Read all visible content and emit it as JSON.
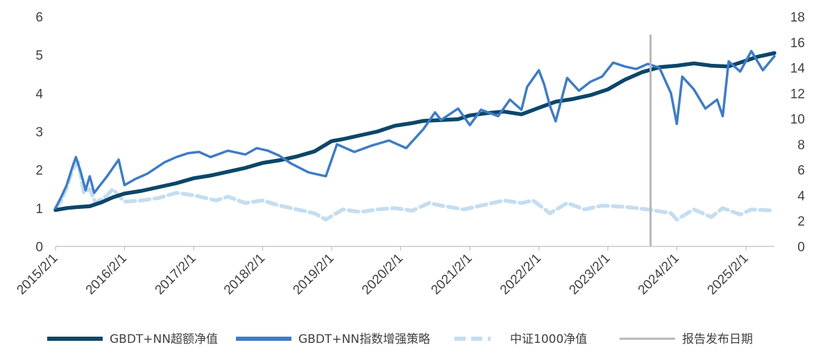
{
  "chart_data": {
    "type": "line",
    "x_ticks": [
      "2015/2/1",
      "2016/2/1",
      "2017/2/1",
      "2018/2/1",
      "2019/2/1",
      "2020/2/1",
      "2021/2/1",
      "2022/2/1",
      "2023/2/1",
      "2024/2/1",
      "2025/2/1"
    ],
    "x_range": [
      "2015/2/1",
      "2025/7/1"
    ],
    "y_left": {
      "ticks": [
        "0",
        "1",
        "2",
        "3",
        "4",
        "5",
        "6"
      ],
      "range": [
        0,
        6
      ]
    },
    "y_right": {
      "ticks": [
        "0",
        "2",
        "4",
        "6",
        "8",
        "10",
        "12",
        "14",
        "16",
        "18"
      ],
      "range": [
        0,
        18
      ]
    },
    "grid": false,
    "legend_position": "bottom",
    "series": [
      {
        "name": "GBDT+NN超额净值",
        "axis": "left",
        "color": "#0b4669",
        "style": "solid-thick",
        "points": [
          [
            "2015/2/1",
            0.95
          ],
          [
            "2015/4/1",
            1.0
          ],
          [
            "2015/6/1",
            1.03
          ],
          [
            "2015/8/1",
            1.05
          ],
          [
            "2015/10/1",
            1.15
          ],
          [
            "2015/12/1",
            1.28
          ],
          [
            "2016/2/1",
            1.38
          ],
          [
            "2016/5/1",
            1.45
          ],
          [
            "2016/8/1",
            1.55
          ],
          [
            "2016/11/1",
            1.65
          ],
          [
            "2017/2/1",
            1.78
          ],
          [
            "2017/5/1",
            1.85
          ],
          [
            "2017/8/1",
            1.95
          ],
          [
            "2017/11/1",
            2.05
          ],
          [
            "2018/2/1",
            2.18
          ],
          [
            "2018/5/1",
            2.25
          ],
          [
            "2018/8/1",
            2.35
          ],
          [
            "2018/11/1",
            2.48
          ],
          [
            "2019/2/1",
            2.75
          ],
          [
            "2019/4/1",
            2.8
          ],
          [
            "2019/7/1",
            2.9
          ],
          [
            "2019/10/1",
            3.0
          ],
          [
            "2020/1/1",
            3.15
          ],
          [
            "2020/4/1",
            3.22
          ],
          [
            "2020/6/1",
            3.28
          ],
          [
            "2020/9/1",
            3.3
          ],
          [
            "2020/12/1",
            3.32
          ],
          [
            "2021/2/1",
            3.42
          ],
          [
            "2021/5/1",
            3.48
          ],
          [
            "2021/8/1",
            3.52
          ],
          [
            "2021/11/1",
            3.45
          ],
          [
            "2022/2/1",
            3.62
          ],
          [
            "2022/5/1",
            3.78
          ],
          [
            "2022/8/1",
            3.85
          ],
          [
            "2022/11/1",
            3.95
          ],
          [
            "2023/2/1",
            4.1
          ],
          [
            "2023/5/1",
            4.35
          ],
          [
            "2023/8/1",
            4.55
          ],
          [
            "2023/11/1",
            4.68
          ],
          [
            "2024/2/1",
            4.72
          ],
          [
            "2024/5/1",
            4.78
          ],
          [
            "2024/8/1",
            4.72
          ],
          [
            "2024/11/1",
            4.7
          ],
          [
            "2025/2/1",
            4.85
          ],
          [
            "2025/4/1",
            4.95
          ],
          [
            "2025/7/1",
            5.05
          ]
        ]
      },
      {
        "name": "GBDT+NN指数增强策略",
        "axis": "right",
        "color": "#3e7cc4",
        "style": "solid",
        "points": [
          [
            "2015/2/1",
            3.0
          ],
          [
            "2015/3/1",
            3.8
          ],
          [
            "2015/4/1",
            4.8
          ],
          [
            "2015/5/1",
            6.2
          ],
          [
            "2015/5/20",
            7.0
          ],
          [
            "2015/6/15",
            5.8
          ],
          [
            "2015/7/10",
            4.4
          ],
          [
            "2015/8/1",
            5.5
          ],
          [
            "2015/8/25",
            4.2
          ],
          [
            "2015/9/20",
            4.7
          ],
          [
            "2015/11/1",
            5.5
          ],
          [
            "2016/1/1",
            6.8
          ],
          [
            "2016/2/1",
            4.8
          ],
          [
            "2016/4/1",
            5.3
          ],
          [
            "2016/6/1",
            5.7
          ],
          [
            "2016/9/1",
            6.6
          ],
          [
            "2016/11/1",
            7.0
          ],
          [
            "2017/1/1",
            7.3
          ],
          [
            "2017/3/1",
            7.4
          ],
          [
            "2017/5/1",
            7.0
          ],
          [
            "2017/8/1",
            7.5
          ],
          [
            "2017/11/1",
            7.2
          ],
          [
            "2018/1/1",
            7.7
          ],
          [
            "2018/3/1",
            7.5
          ],
          [
            "2018/5/1",
            7.1
          ],
          [
            "2018/7/1",
            6.5
          ],
          [
            "2018/10/1",
            5.8
          ],
          [
            "2019/1/1",
            5.5
          ],
          [
            "2019/3/1",
            8.0
          ],
          [
            "2019/6/1",
            7.4
          ],
          [
            "2019/9/1",
            7.9
          ],
          [
            "2019/12/1",
            8.3
          ],
          [
            "2020/3/1",
            7.7
          ],
          [
            "2020/6/1",
            9.2
          ],
          [
            "2020/8/1",
            10.5
          ],
          [
            "2020/9/1",
            9.9
          ],
          [
            "2020/12/1",
            10.8
          ],
          [
            "2021/2/1",
            9.5
          ],
          [
            "2021/4/1",
            10.7
          ],
          [
            "2021/7/1",
            10.2
          ],
          [
            "2021/9/1",
            11.5
          ],
          [
            "2021/11/1",
            10.7
          ],
          [
            "2021/12/1",
            12.5
          ],
          [
            "2022/2/1",
            13.8
          ],
          [
            "2022/3/1",
            12.7
          ],
          [
            "2022/4/1",
            11.0
          ],
          [
            "2022/5/1",
            9.8
          ],
          [
            "2022/7/1",
            13.2
          ],
          [
            "2022/9/1",
            12.2
          ],
          [
            "2022/11/1",
            12.9
          ],
          [
            "2023/1/1",
            13.3
          ],
          [
            "2023/3/1",
            14.4
          ],
          [
            "2023/5/1",
            14.1
          ],
          [
            "2023/7/1",
            13.9
          ],
          [
            "2023/9/1",
            14.3
          ],
          [
            "2023/11/1",
            14.0
          ],
          [
            "2024/1/1",
            12.0
          ],
          [
            "2024/2/1",
            9.6
          ],
          [
            "2024/3/1",
            13.3
          ],
          [
            "2024/5/1",
            12.3
          ],
          [
            "2024/7/1",
            10.8
          ],
          [
            "2024/9/1",
            11.5
          ],
          [
            "2024/10/1",
            10.2
          ],
          [
            "2024/11/1",
            14.5
          ],
          [
            "2025/1/1",
            13.7
          ],
          [
            "2025/3/1",
            15.3
          ],
          [
            "2025/5/1",
            13.8
          ],
          [
            "2025/7/1",
            14.9
          ]
        ]
      },
      {
        "name": "中证1000净值",
        "axis": "right",
        "color": "#c4ddf1",
        "style": "dashed-thick",
        "points": [
          [
            "2015/2/1",
            3.0
          ],
          [
            "2015/3/1",
            3.5
          ],
          [
            "2015/4/1",
            4.6
          ],
          [
            "2015/5/1",
            6.0
          ],
          [
            "2015/6/1",
            6.6
          ],
          [
            "2015/7/1",
            4.2
          ],
          [
            "2015/8/1",
            4.5
          ],
          [
            "2015/9/1",
            3.4
          ],
          [
            "2015/11/1",
            4.0
          ],
          [
            "2015/12/1",
            4.5
          ],
          [
            "2016/2/1",
            3.5
          ],
          [
            "2016/5/1",
            3.6
          ],
          [
            "2016/8/1",
            3.8
          ],
          [
            "2016/11/1",
            4.2
          ],
          [
            "2017/2/1",
            4.0
          ],
          [
            "2017/6/1",
            3.6
          ],
          [
            "2017/8/1",
            3.9
          ],
          [
            "2017/11/1",
            3.4
          ],
          [
            "2018/2/1",
            3.6
          ],
          [
            "2018/5/1",
            3.2
          ],
          [
            "2018/8/1",
            2.9
          ],
          [
            "2018/11/1",
            2.6
          ],
          [
            "2019/1/1",
            2.1
          ],
          [
            "2019/4/1",
            2.9
          ],
          [
            "2019/7/1",
            2.7
          ],
          [
            "2019/10/1",
            2.9
          ],
          [
            "2020/1/1",
            3.0
          ],
          [
            "2020/4/1",
            2.8
          ],
          [
            "2020/7/1",
            3.4
          ],
          [
            "2020/9/1",
            3.2
          ],
          [
            "2021/1/1",
            2.9
          ],
          [
            "2021/4/1",
            3.2
          ],
          [
            "2021/8/1",
            3.6
          ],
          [
            "2021/11/1",
            3.4
          ],
          [
            "2022/1/1",
            3.6
          ],
          [
            "2022/4/1",
            2.6
          ],
          [
            "2022/7/1",
            3.4
          ],
          [
            "2022/10/1",
            2.9
          ],
          [
            "2023/1/1",
            3.2
          ],
          [
            "2023/5/1",
            3.1
          ],
          [
            "2023/9/1",
            2.9
          ],
          [
            "2024/1/1",
            2.6
          ],
          [
            "2024/2/1",
            2.1
          ],
          [
            "2024/5/1",
            2.9
          ],
          [
            "2024/8/1",
            2.3
          ],
          [
            "2024/10/1",
            3.0
          ],
          [
            "2025/1/1",
            2.5
          ],
          [
            "2025/3/1",
            2.9
          ],
          [
            "2025/7/1",
            2.8
          ]
        ]
      }
    ],
    "vertical_marker": {
      "name": "报告发布日期",
      "date": "2023/9/15",
      "color": "#b7b7b7"
    },
    "legend": [
      {
        "label": "GBDT+NN超额净值",
        "color": "#0b4669",
        "style": "solid-thick"
      },
      {
        "label": "GBDT+NN指数增强策略",
        "color": "#3e7cc4",
        "style": "solid-thick"
      },
      {
        "label": "中证1000净值",
        "color": "#c4ddf1",
        "style": "dashed-thick"
      },
      {
        "label": "报告发布日期",
        "color": "#b7b7b7",
        "style": "solid"
      }
    ]
  }
}
